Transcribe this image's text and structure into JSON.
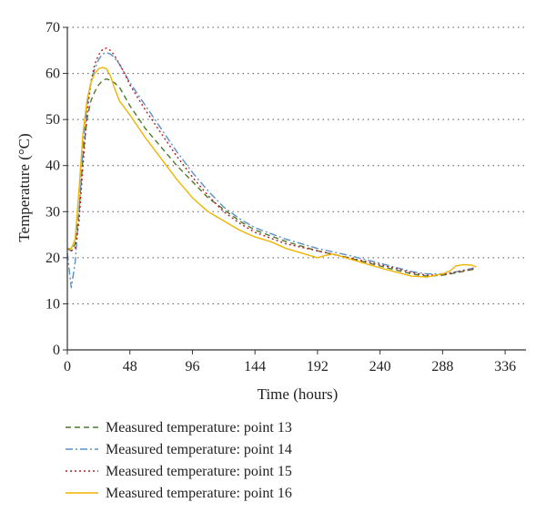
{
  "chart_data": {
    "type": "line",
    "xlabel": "Time (hours)",
    "ylabel": "Temperature (°C)",
    "xlim": [
      0,
      352
    ],
    "ylim": [
      0,
      70
    ],
    "xticks": [
      0,
      48,
      96,
      144,
      192,
      240,
      288,
      336
    ],
    "yticks": [
      0,
      10,
      20,
      30,
      40,
      50,
      60,
      70
    ],
    "grid": "horizontal-dotted",
    "legend_position": "bottom",
    "series": [
      {
        "name": "Measured temperature: point 13",
        "color": "#4f7a2a",
        "dash": "6,4",
        "points": [
          [
            0,
            22
          ],
          [
            3,
            21.5
          ],
          [
            6,
            23
          ],
          [
            9,
            30
          ],
          [
            12,
            42
          ],
          [
            15,
            50
          ],
          [
            18,
            54
          ],
          [
            21,
            56
          ],
          [
            24,
            57.5
          ],
          [
            27,
            58.5
          ],
          [
            30,
            58.8
          ],
          [
            33,
            58.5
          ],
          [
            36,
            58
          ],
          [
            40,
            57
          ],
          [
            44,
            55
          ],
          [
            48,
            53
          ],
          [
            60,
            48
          ],
          [
            72,
            44
          ],
          [
            84,
            40
          ],
          [
            96,
            36.5
          ],
          [
            108,
            33
          ],
          [
            120,
            30.5
          ],
          [
            132,
            28
          ],
          [
            144,
            26
          ],
          [
            168,
            23.5
          ],
          [
            192,
            21.5
          ],
          [
            216,
            20
          ],
          [
            240,
            18.2
          ],
          [
            264,
            16.5
          ],
          [
            276,
            16
          ],
          [
            288,
            16.2
          ],
          [
            300,
            16.8
          ],
          [
            312,
            17.5
          ]
        ]
      },
      {
        "name": "Measured temperature: point 14",
        "color": "#5b8fc9",
        "dash": "8,3,2,3",
        "points": [
          [
            0,
            21
          ],
          [
            3,
            13.5
          ],
          [
            6,
            19
          ],
          [
            9,
            30
          ],
          [
            12,
            44
          ],
          [
            15,
            53
          ],
          [
            18,
            58
          ],
          [
            21,
            61
          ],
          [
            24,
            63
          ],
          [
            27,
            64.2
          ],
          [
            30,
            64.5
          ],
          [
            33,
            64.2
          ],
          [
            36,
            63.5
          ],
          [
            40,
            62
          ],
          [
            44,
            60
          ],
          [
            48,
            58
          ],
          [
            60,
            53
          ],
          [
            72,
            48
          ],
          [
            84,
            43
          ],
          [
            96,
            38.5
          ],
          [
            108,
            34.5
          ],
          [
            120,
            31
          ],
          [
            132,
            28.5
          ],
          [
            144,
            26.5
          ],
          [
            168,
            24
          ],
          [
            192,
            22
          ],
          [
            216,
            20.5
          ],
          [
            240,
            18.8
          ],
          [
            264,
            17
          ],
          [
            276,
            16.5
          ],
          [
            288,
            16.5
          ],
          [
            300,
            17
          ],
          [
            312,
            17.8
          ]
        ]
      },
      {
        "name": "Measured temperature: point 15",
        "color": "#b02020",
        "dash": "2,3",
        "points": [
          [
            0,
            22
          ],
          [
            3,
            21.5
          ],
          [
            6,
            22
          ],
          [
            9,
            28
          ],
          [
            12,
            40
          ],
          [
            15,
            51
          ],
          [
            18,
            58
          ],
          [
            21,
            62
          ],
          [
            24,
            64
          ],
          [
            27,
            65.2
          ],
          [
            30,
            65.5
          ],
          [
            33,
            65
          ],
          [
            36,
            64
          ],
          [
            40,
            62
          ],
          [
            44,
            60
          ],
          [
            48,
            57.5
          ],
          [
            60,
            52
          ],
          [
            72,
            47
          ],
          [
            84,
            42
          ],
          [
            96,
            37.5
          ],
          [
            108,
            33.5
          ],
          [
            120,
            30
          ],
          [
            132,
            27.5
          ],
          [
            144,
            25.5
          ],
          [
            168,
            23
          ],
          [
            192,
            21.5
          ],
          [
            216,
            20
          ],
          [
            240,
            18.5
          ],
          [
            264,
            16.8
          ],
          [
            276,
            16.2
          ],
          [
            288,
            16.3
          ],
          [
            300,
            17
          ],
          [
            312,
            17.6
          ]
        ]
      },
      {
        "name": "Measured temperature: point 16",
        "color": "#f0b400",
        "dash": "",
        "points": [
          [
            0,
            22
          ],
          [
            3,
            22
          ],
          [
            6,
            24
          ],
          [
            9,
            35
          ],
          [
            12,
            47
          ],
          [
            15,
            54
          ],
          [
            18,
            58
          ],
          [
            21,
            60
          ],
          [
            24,
            61
          ],
          [
            27,
            61.3
          ],
          [
            30,
            61
          ],
          [
            33,
            59.5
          ],
          [
            36,
            57
          ],
          [
            40,
            54
          ],
          [
            48,
            51
          ],
          [
            60,
            46
          ],
          [
            72,
            41.5
          ],
          [
            84,
            37
          ],
          [
            96,
            33
          ],
          [
            108,
            30
          ],
          [
            120,
            28
          ],
          [
            132,
            26
          ],
          [
            144,
            24.5
          ],
          [
            156,
            23.5
          ],
          [
            168,
            22
          ],
          [
            180,
            21
          ],
          [
            192,
            20
          ],
          [
            198,
            20.5
          ],
          [
            204,
            20.8
          ],
          [
            216,
            19.8
          ],
          [
            240,
            17.8
          ],
          [
            264,
            16
          ],
          [
            276,
            15.8
          ],
          [
            288,
            16.5
          ],
          [
            294,
            17.2
          ],
          [
            298,
            18.2
          ],
          [
            304,
            18.5
          ],
          [
            310,
            18.4
          ],
          [
            314,
            18
          ]
        ]
      }
    ]
  }
}
